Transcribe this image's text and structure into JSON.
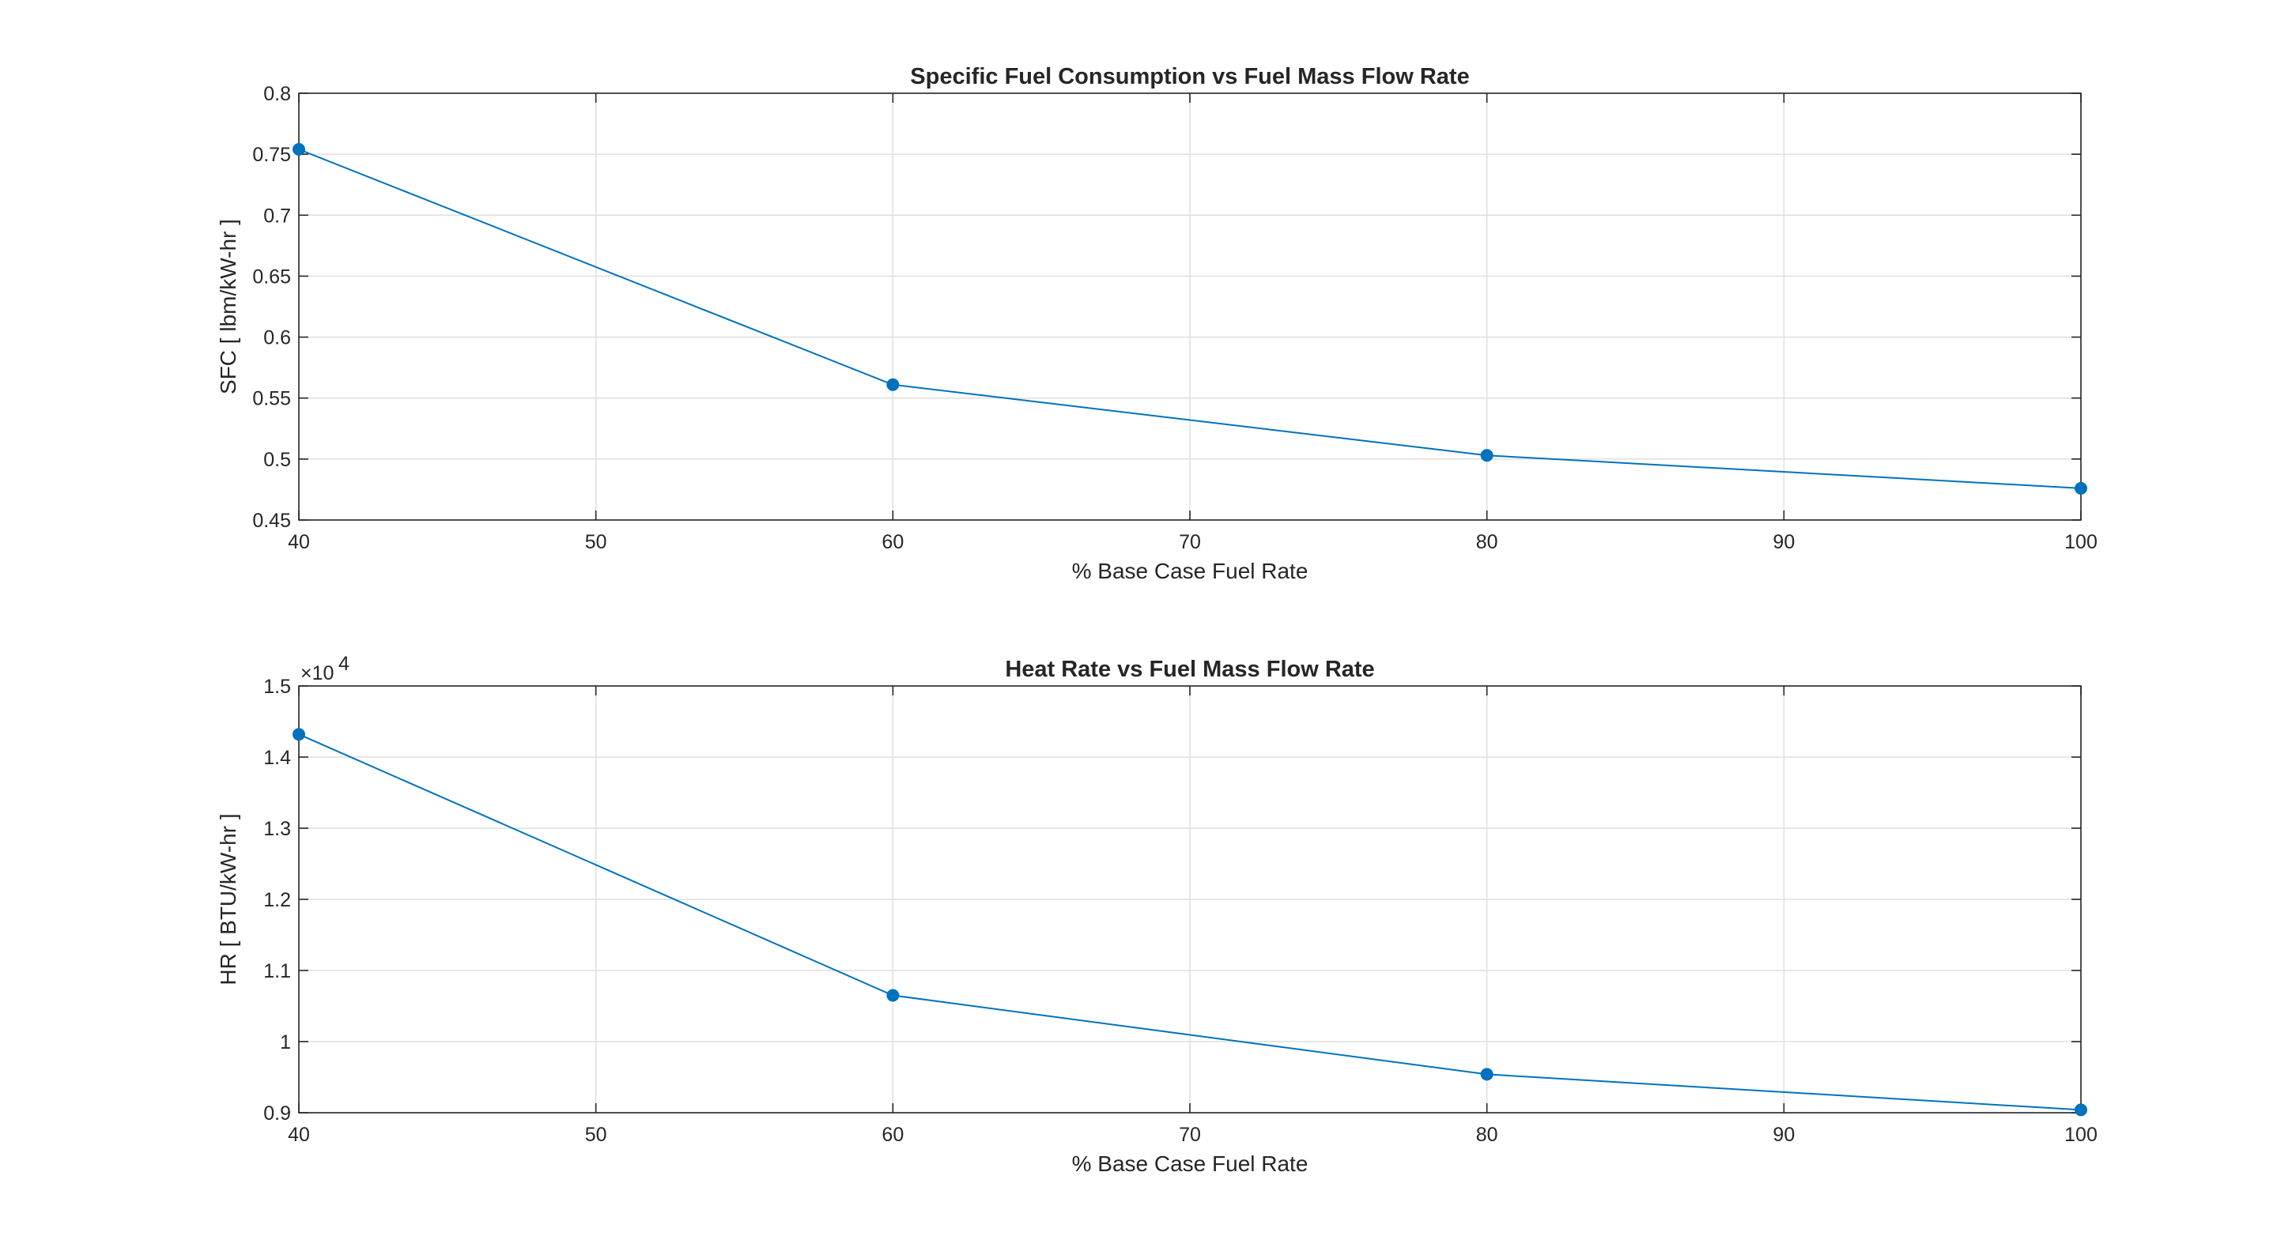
{
  "chart_data": [
    {
      "type": "line",
      "title": "Specific Fuel Consumption vs Fuel Mass Flow Rate",
      "xlabel": "% Base Case Fuel Rate",
      "ylabel": "SFC [ lbm/kW-hr ]",
      "xlim": [
        40,
        100
      ],
      "ylim": [
        0.45,
        0.8
      ],
      "xticks": [
        40,
        50,
        60,
        70,
        80,
        90,
        100
      ],
      "xtick_labels": [
        "40",
        "50",
        "60",
        "70",
        "80",
        "90",
        "100"
      ],
      "yticks": [
        0.45,
        0.5,
        0.55,
        0.6,
        0.65,
        0.7,
        0.75,
        0.8
      ],
      "ytick_labels": [
        "0.45",
        "0.5",
        "0.55",
        "0.6",
        "0.65",
        "0.7",
        "0.75",
        "0.8"
      ],
      "grid": true,
      "series": [
        {
          "x": [
            40,
            60,
            80,
            100
          ],
          "y": [
            0.754,
            0.561,
            0.503,
            0.476
          ],
          "color": "#0072BD",
          "marker": "circle"
        }
      ]
    },
    {
      "type": "line",
      "title": "Heat Rate vs Fuel Mass Flow Rate",
      "xlabel": "% Base Case Fuel Rate",
      "ylabel": "HR [ BTU/kW-hr ]",
      "xlim": [
        40,
        100
      ],
      "ylim": [
        9000,
        15000
      ],
      "y_exponent_label": "×10",
      "y_exponent_power": "4",
      "xticks": [
        40,
        50,
        60,
        70,
        80,
        90,
        100
      ],
      "xtick_labels": [
        "40",
        "50",
        "60",
        "70",
        "80",
        "90",
        "100"
      ],
      "yticks": [
        9000,
        10000,
        11000,
        12000,
        13000,
        14000,
        15000
      ],
      "ytick_labels": [
        "0.9",
        "1",
        "1.1",
        "1.2",
        "1.3",
        "1.4",
        "1.5"
      ],
      "grid": true,
      "series": [
        {
          "x": [
            40,
            60,
            80,
            100
          ],
          "y": [
            14320,
            10650,
            9540,
            9040
          ],
          "color": "#0072BD",
          "marker": "circle"
        }
      ]
    }
  ]
}
